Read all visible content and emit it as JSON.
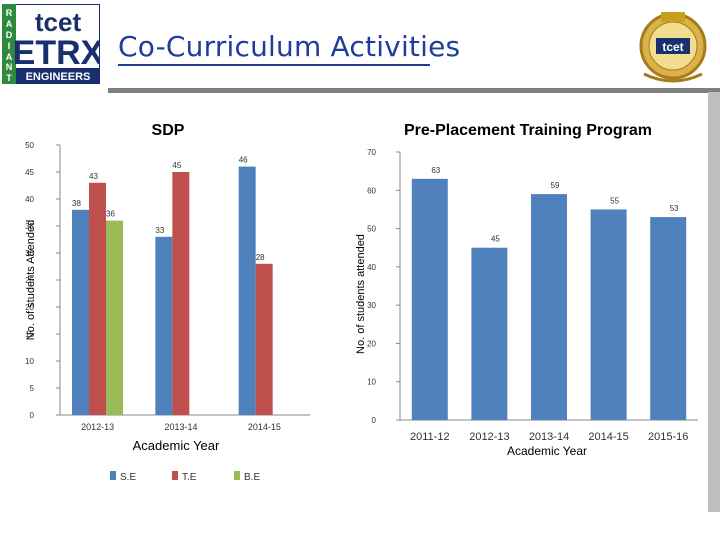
{
  "header": {
    "logo_top": "tcet",
    "logo_main": "ETRX",
    "logo_side": "RADIANT",
    "logo_bottom": "ENGINEERS",
    "title": "Co-Curriculum Activities",
    "right_logo": "tcet",
    "colors": {
      "navy": "#1a2f6e",
      "green": "#2e8b3e",
      "gold": "#c8a020",
      "title": "#1f3d9b"
    }
  },
  "chart_data": [
    {
      "type": "bar",
      "title": "SDP",
      "categories": [
        "2012-13",
        "2013-14",
        "2014-15"
      ],
      "series": [
        {
          "name": "S.E",
          "color": "#4f81bd",
          "values": [
            38,
            33,
            46
          ]
        },
        {
          "name": "T.E",
          "color": "#c0504d",
          "values": [
            43,
            45,
            28
          ]
        },
        {
          "name": "B.E",
          "color": "#9bbb59",
          "values": [
            36,
            null,
            null
          ]
        }
      ],
      "xlabel": "Academic Year",
      "ylabel": "No. of students Attended",
      "ylim": [
        0,
        50
      ],
      "yticks": [
        0,
        5,
        10,
        15,
        20,
        25,
        30,
        35,
        40,
        45,
        50
      ],
      "legend": "bottom",
      "grid": false
    },
    {
      "type": "bar",
      "title": "Pre-Placement Training Program",
      "categories": [
        "2011-12",
        "2012-13",
        "2013-14",
        "2014-15",
        "2015-16"
      ],
      "series": [
        {
          "name": "",
          "color": "#4f81bd",
          "values": [
            63,
            45,
            59,
            55,
            53
          ]
        }
      ],
      "xlabel": "Academic Year",
      "ylabel": "No. of students attended",
      "ylim": [
        0,
        70
      ],
      "yticks": [
        0,
        10,
        20,
        30,
        40,
        50,
        60,
        70
      ],
      "legend": "none",
      "grid": false
    }
  ]
}
